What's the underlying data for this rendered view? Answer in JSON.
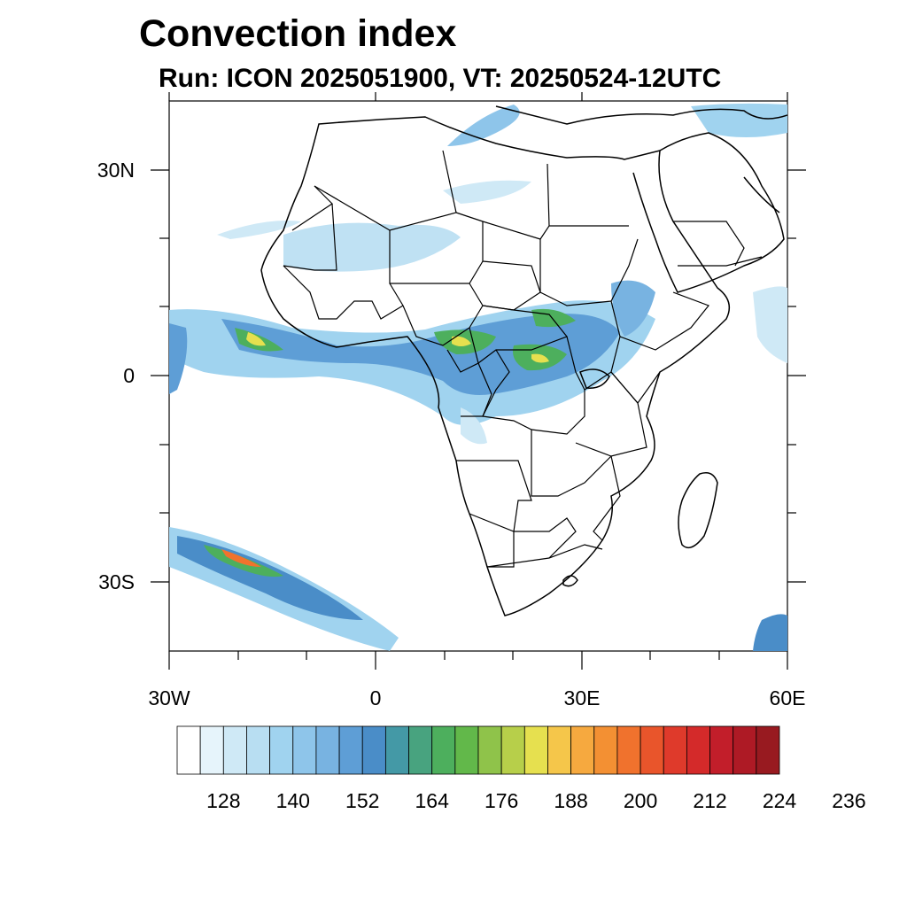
{
  "title": "Convection index",
  "subtitle": "Run: ICON 2025051900,  VT: 20250524-12UTC",
  "map": {
    "lon_range": [
      -30,
      60
    ],
    "lat_range": [
      -40,
      40
    ],
    "lon_ticks": [
      {
        "value": -30,
        "label": "30W"
      },
      {
        "value": 0,
        "label": "0"
      },
      {
        "value": 30,
        "label": "30E"
      },
      {
        "value": 60,
        "label": "60E"
      }
    ],
    "lat_ticks": [
      {
        "value": 30,
        "label": "30N"
      },
      {
        "value": 0,
        "label": "0"
      },
      {
        "value": -30,
        "label": "30S"
      }
    ]
  },
  "colorbar": {
    "colors": [
      "#ffffff",
      "#e6f4fb",
      "#cfe9f6",
      "#b8def2",
      "#a0d3ef",
      "#8ec5ea",
      "#78b3e1",
      "#5e9ed6",
      "#4a8dc8",
      "#4499a6",
      "#48a37f",
      "#4daf5d",
      "#62b84a",
      "#8fc34a",
      "#b7cf4a",
      "#e6e04f",
      "#f5c64a",
      "#f6a93f",
      "#f39033",
      "#f0722d",
      "#e9552b",
      "#df3a2b",
      "#d42a2a",
      "#c21e2a",
      "#ae1a25",
      "#981a20"
    ],
    "labels": [
      "128",
      "140",
      "152",
      "164",
      "176",
      "188",
      "200",
      "212",
      "224",
      "236"
    ]
  },
  "colors": {
    "border": "#000000",
    "frame": "#000000",
    "background": "#ffffff"
  }
}
